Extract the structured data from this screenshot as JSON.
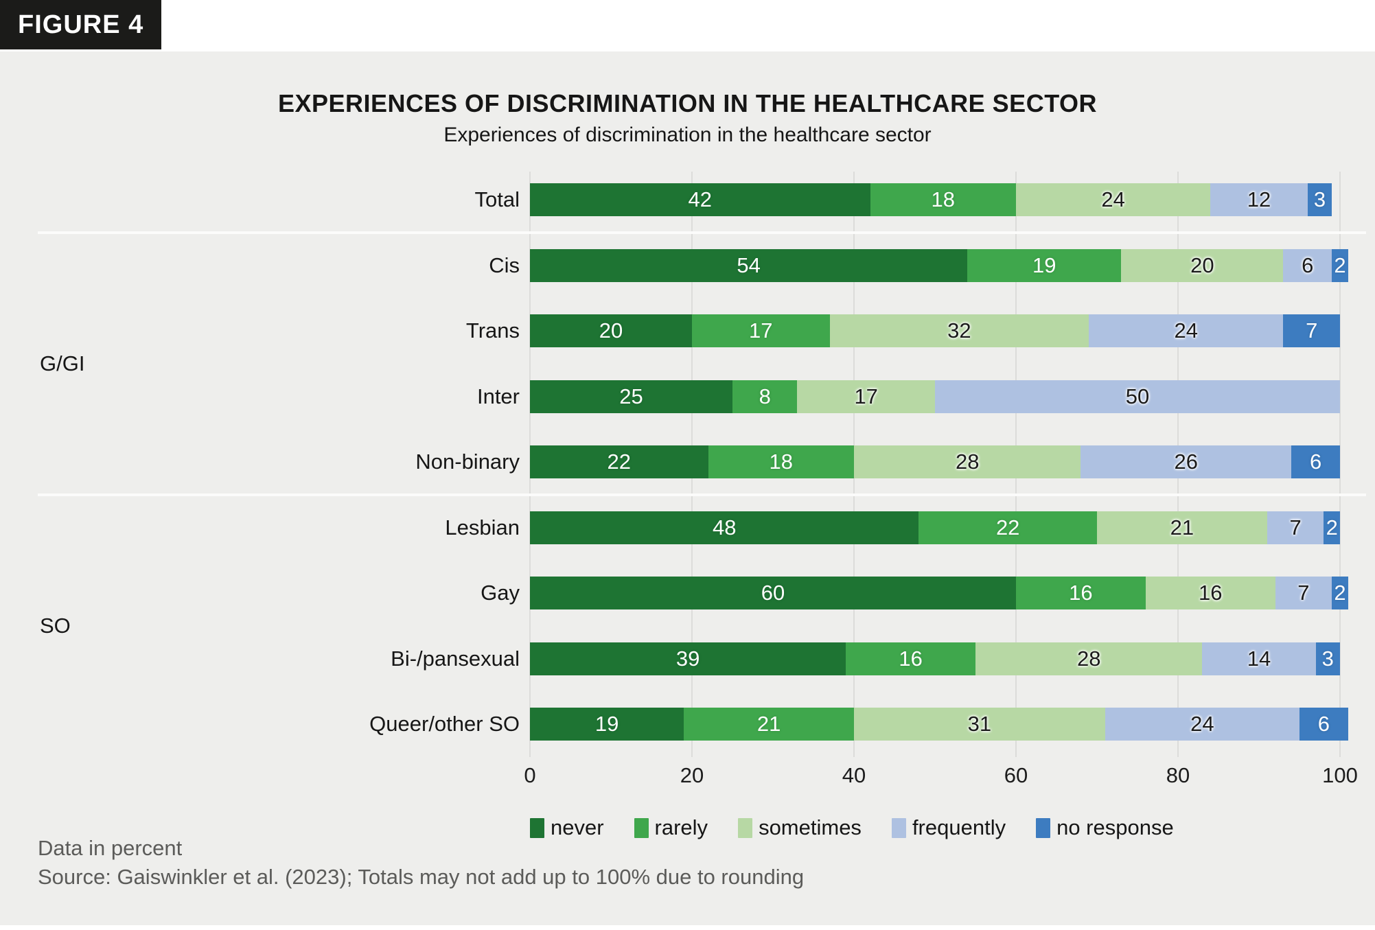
{
  "figure_tag": "FIGURE 4",
  "title": "EXPERIENCES OF DISCRIMINATION IN THE HEALTHCARE SECTOR",
  "subtitle": "Experiences of discrimination in the healthcare sector",
  "chart_data": {
    "type": "bar",
    "orientation": "horizontal",
    "stacked": true,
    "units": "percent",
    "xlim": [
      0,
      100
    ],
    "x_ticks": [
      "0",
      "20",
      "40",
      "60",
      "80",
      "100"
    ],
    "grid": true,
    "legend_position": "bottom",
    "series_names": [
      "never",
      "rarely",
      "sometimes",
      "frequently",
      "no response"
    ],
    "legend": [
      {
        "label": "never",
        "color": "#1e7433",
        "text_color": "light"
      },
      {
        "label": "rarely",
        "color": "#3fa74c",
        "text_color": "light"
      },
      {
        "label": "sometimes",
        "color": "#b7d8a4",
        "text_color": "dark"
      },
      {
        "label": "frequently",
        "color": "#aec1e1",
        "text_color": "dark"
      },
      {
        "label": "no response",
        "color": "#3d7cc0",
        "text_color": "light"
      }
    ],
    "groups": [
      {
        "label": "",
        "rows": [
          {
            "category": "Total",
            "values": [
              42,
              18,
              24,
              12,
              3
            ]
          }
        ]
      },
      {
        "label": "G/GI",
        "rows": [
          {
            "category": "Cis",
            "values": [
              54,
              19,
              20,
              6,
              2
            ]
          },
          {
            "category": "Trans",
            "values": [
              20,
              17,
              32,
              24,
              7
            ]
          },
          {
            "category": "Inter",
            "values": [
              25,
              8,
              17,
              50,
              null
            ]
          },
          {
            "category": "Non-binary",
            "values": [
              22,
              18,
              28,
              26,
              6
            ]
          }
        ]
      },
      {
        "label": "SO",
        "rows": [
          {
            "category": "Lesbian",
            "values": [
              48,
              22,
              21,
              7,
              2
            ]
          },
          {
            "category": "Gay",
            "values": [
              60,
              16,
              16,
              7,
              2
            ]
          },
          {
            "category": "Bi-/pansexual",
            "values": [
              39,
              16,
              28,
              14,
              3
            ]
          },
          {
            "category": "Queer/other SO",
            "values": [
              19,
              21,
              31,
              24,
              6
            ]
          }
        ]
      }
    ]
  },
  "footer": {
    "note": "Data in percent",
    "source": "Source: Gaiswinkler et al. (2023); Totals may not add up to 100% due to rounding"
  }
}
